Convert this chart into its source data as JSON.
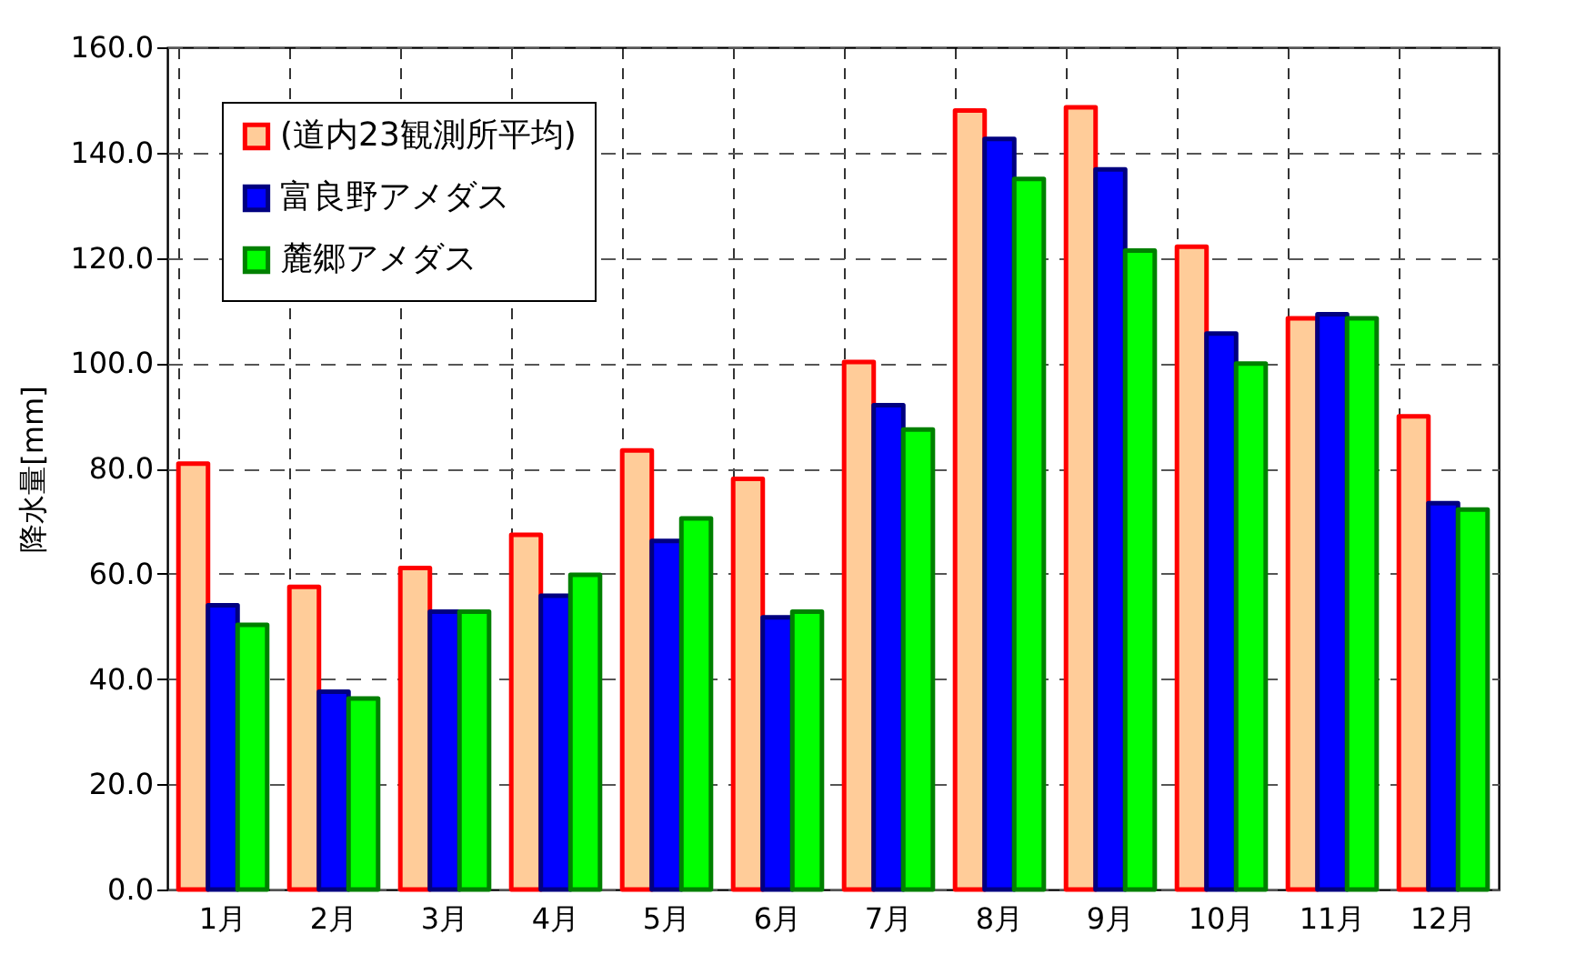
{
  "chart_data": {
    "type": "bar",
    "ylabel": "降水量[mm]",
    "categories": [
      "1月",
      "2月",
      "3月",
      "4月",
      "5月",
      "6月",
      "7月",
      "8月",
      "9月",
      "10月",
      "11月",
      "12月"
    ],
    "series": [
      {
        "name": "(道内23観測所平均)",
        "color": "#ffcc99",
        "values": [
          80.9,
          57.5,
          61.1,
          67.4,
          83.4,
          78.0,
          100.2,
          148.0,
          148.6,
          122.1,
          108.5,
          89.9
        ]
      },
      {
        "name": "富良野アメダス",
        "color": "#0000ff",
        "values": [
          54.0,
          37.6,
          52.8,
          55.8,
          66.2,
          51.7,
          92.0,
          142.6,
          136.8,
          105.6,
          109.3,
          73.4
        ]
      },
      {
        "name": "麓郷アメダス",
        "color": "#00ff00",
        "values": [
          50.3,
          36.3,
          52.8,
          59.8,
          70.5,
          52.8,
          87.4,
          135.0,
          121.4,
          99.9,
          108.5,
          72.2
        ]
      }
    ],
    "ylim": [
      0,
      160
    ],
    "yticks": [
      {
        "value": 0,
        "label": "0.0"
      },
      {
        "value": 20,
        "label": "20.0"
      },
      {
        "value": 40,
        "label": "40.0"
      },
      {
        "value": 60,
        "label": "60.0"
      },
      {
        "value": 80,
        "label": "80.0"
      },
      {
        "value": 100,
        "label": "100.0"
      },
      {
        "value": 120,
        "label": "120.0"
      },
      {
        "value": 140,
        "label": "140.0"
      },
      {
        "value": 160,
        "label": "160.0"
      }
    ],
    "grid": true,
    "legend": "top left"
  }
}
